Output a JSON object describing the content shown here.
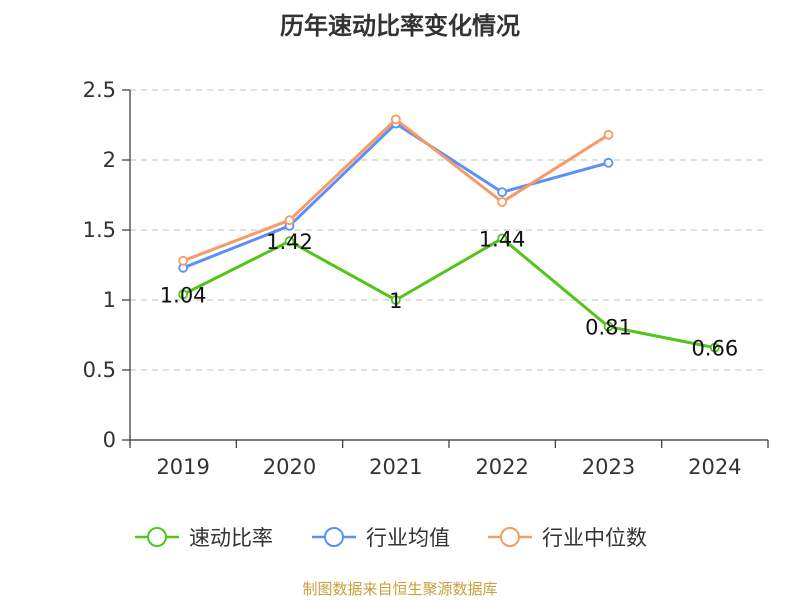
{
  "title": "历年速动比率变化情况",
  "source": "制图数据来自恒生聚源数据库",
  "chart_data": {
    "type": "line",
    "title": "历年速动比率变化情况",
    "categories": [
      "2019",
      "2020",
      "2021",
      "2022",
      "2023",
      "2024"
    ],
    "ylim": [
      0,
      2.5
    ],
    "yticks": [
      "0",
      "0.5",
      "1",
      "1.5",
      "2",
      "2.5"
    ],
    "grid": true,
    "legend_position": "bottom",
    "series": [
      {
        "name": "速动比率",
        "color": "#52c41a",
        "values": [
          1.04,
          1.42,
          1,
          1.44,
          0.81,
          0.66
        ],
        "labels": [
          "1.04",
          "1.42",
          "1",
          "1.44",
          "0.81",
          "0.66"
        ]
      },
      {
        "name": "行业均值",
        "color": "#5b8ff9",
        "values": [
          1.23,
          1.53,
          2.26,
          1.77,
          1.98,
          null
        ]
      },
      {
        "name": "行业中位数",
        "color": "#f89a64",
        "values": [
          1.28,
          1.57,
          2.29,
          1.7,
          2.18,
          null
        ]
      }
    ]
  }
}
